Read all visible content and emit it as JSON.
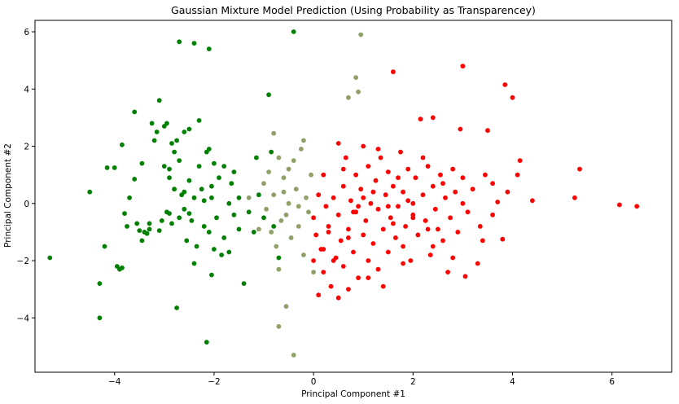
{
  "chart_data": {
    "type": "scatter",
    "title": "Gaussian Mixture Model Prediction (Using Probability as Transparencey)",
    "xlabel": "Principal Component #1",
    "ylabel": "Principal Component #2",
    "xlim": [
      -5.6,
      7.2
    ],
    "ylim": [
      -5.9,
      6.4
    ],
    "xticks": [
      -4,
      -2,
      0,
      2,
      4,
      6
    ],
    "yticks": [
      -4,
      -2,
      0,
      2,
      4,
      6
    ],
    "grid": false,
    "colors": {
      "cluster_a": "#ff0000",
      "cluster_b": "#008000",
      "frame": "#000000"
    },
    "series": [
      {
        "color": "#008000",
        "points": [
          [
            -5.3,
            -1.9
          ],
          [
            -4.5,
            0.4
          ],
          [
            -4.3,
            -4.0
          ],
          [
            -4.3,
            -2.8
          ],
          [
            -4.2,
            -1.5
          ],
          [
            -4.15,
            1.25
          ],
          [
            -4.0,
            1.25
          ],
          [
            -3.95,
            -2.2
          ],
          [
            -3.9,
            -2.3
          ],
          [
            -3.85,
            -2.25
          ],
          [
            -3.85,
            2.05
          ],
          [
            -3.8,
            -0.35
          ],
          [
            -3.75,
            -0.8
          ],
          [
            -3.6,
            3.2
          ],
          [
            -3.6,
            0.85
          ],
          [
            -3.55,
            -0.7
          ],
          [
            -3.5,
            -0.95
          ],
          [
            -3.45,
            1.4
          ],
          [
            -3.4,
            -1.0
          ],
          [
            -3.35,
            -1.05
          ],
          [
            -3.3,
            -0.7
          ],
          [
            -3.25,
            2.8
          ],
          [
            -3.2,
            2.2
          ],
          [
            -3.15,
            2.5
          ],
          [
            -3.1,
            -0.95
          ],
          [
            -3.1,
            3.6
          ],
          [
            -3.05,
            -0.6
          ],
          [
            -3.0,
            1.3
          ],
          [
            -3.0,
            2.7
          ],
          [
            -2.95,
            -0.3
          ],
          [
            -2.95,
            2.8
          ],
          [
            -2.9,
            0.9
          ],
          [
            -2.9,
            -0.35
          ],
          [
            -2.85,
            2.1
          ],
          [
            -2.8,
            0.5
          ],
          [
            -2.8,
            1.8
          ],
          [
            -2.75,
            2.2
          ],
          [
            -2.7,
            -0.5
          ],
          [
            -2.7,
            1.5
          ],
          [
            -2.7,
            5.65
          ],
          [
            -2.65,
            0.3
          ],
          [
            -2.6,
            0.4
          ],
          [
            -2.6,
            2.5
          ],
          [
            -2.55,
            -1.3
          ],
          [
            -2.5,
            2.6
          ],
          [
            -2.5,
            0.8
          ],
          [
            -2.45,
            -0.6
          ],
          [
            -2.4,
            0.2
          ],
          [
            -2.4,
            -2.1
          ],
          [
            -2.3,
            2.9
          ],
          [
            -2.3,
            1.3
          ],
          [
            -2.25,
            0.5
          ],
          [
            -2.2,
            -0.8
          ],
          [
            -2.2,
            0.1
          ],
          [
            -2.15,
            1.8
          ],
          [
            -2.1,
            -1.0
          ],
          [
            -2.1,
            5.4
          ],
          [
            -2.1,
            1.9
          ],
          [
            -2.05,
            0.2
          ],
          [
            -2.05,
            0.6
          ],
          [
            -2.0,
            -1.6
          ],
          [
            -2.0,
            1.4
          ],
          [
            -1.95,
            -0.5
          ],
          [
            -1.9,
            0.9
          ],
          [
            -1.85,
            -1.8
          ],
          [
            -1.8,
            1.3
          ],
          [
            -1.8,
            -1.2
          ],
          [
            -1.7,
            0.0
          ],
          [
            -1.7,
            -1.7
          ],
          [
            -1.6,
            -0.4
          ],
          [
            -1.6,
            1.1
          ],
          [
            -1.5,
            0.2
          ],
          [
            -1.5,
            -0.9
          ],
          [
            -1.4,
            -2.8
          ],
          [
            -1.3,
            -0.3
          ],
          [
            -1.2,
            -1.0
          ],
          [
            -1.15,
            1.6
          ],
          [
            -1.1,
            0.3
          ],
          [
            -1.0,
            -0.5
          ],
          [
            -0.9,
            3.8
          ],
          [
            -0.85,
            1.8
          ],
          [
            -0.8,
            -0.8
          ],
          [
            -0.7,
            -1.9
          ],
          [
            -0.4,
            6.0
          ],
          [
            -2.75,
            -3.65
          ],
          [
            -2.15,
            -4.85
          ],
          [
            -2.4,
            5.6
          ],
          [
            -3.3,
            -0.9
          ],
          [
            -3.7,
            0.2
          ],
          [
            -2.9,
            1.2
          ],
          [
            -2.6,
            -0.2
          ],
          [
            -3.45,
            -1.3
          ],
          [
            -2.05,
            -2.5
          ],
          [
            -2.35,
            -1.5
          ],
          [
            -2.85,
            -0.7
          ],
          [
            -1.65,
            0.7
          ],
          [
            -2.5,
            -0.35
          ]
        ]
      },
      {
        "color": "#ff0000",
        "points": [
          [
            0.0,
            -0.5
          ],
          [
            0.05,
            -1.1
          ],
          [
            0.1,
            0.3
          ],
          [
            0.1,
            -3.2
          ],
          [
            0.15,
            -1.6
          ],
          [
            0.2,
            1.0
          ],
          [
            0.2,
            -2.4
          ],
          [
            0.25,
            -0.1
          ],
          [
            0.3,
            -0.8
          ],
          [
            0.35,
            -2.9
          ],
          [
            0.4,
            0.2
          ],
          [
            0.45,
            -1.9
          ],
          [
            0.5,
            2.1
          ],
          [
            0.5,
            -0.4
          ],
          [
            0.55,
            -1.3
          ],
          [
            0.6,
            0.6
          ],
          [
            0.6,
            -2.2
          ],
          [
            0.65,
            1.6
          ],
          [
            0.7,
            -0.9
          ],
          [
            0.7,
            -3.0
          ],
          [
            0.75,
            0.1
          ],
          [
            0.8,
            -1.7
          ],
          [
            0.85,
            1.0
          ],
          [
            0.85,
            -0.3
          ],
          [
            0.9,
            -2.6
          ],
          [
            0.95,
            0.5
          ],
          [
            1.0,
            -1.1
          ],
          [
            1.0,
            2.0
          ],
          [
            1.05,
            -0.6
          ],
          [
            1.1,
            1.3
          ],
          [
            1.1,
            -2.0
          ],
          [
            1.15,
            0.0
          ],
          [
            1.2,
            -1.4
          ],
          [
            1.25,
            0.8
          ],
          [
            1.3,
            -0.2
          ],
          [
            1.3,
            -2.3
          ],
          [
            1.35,
            1.6
          ],
          [
            1.4,
            -0.9
          ],
          [
            1.45,
            0.3
          ],
          [
            1.5,
            -1.7
          ],
          [
            1.5,
            1.1
          ],
          [
            1.55,
            -0.5
          ],
          [
            1.6,
            4.6
          ],
          [
            1.6,
            0.6
          ],
          [
            1.65,
            -1.2
          ],
          [
            1.7,
            -0.1
          ],
          [
            1.75,
            1.8
          ],
          [
            1.8,
            -1.5
          ],
          [
            1.8,
            0.4
          ],
          [
            1.85,
            -0.8
          ],
          [
            1.9,
            1.2
          ],
          [
            1.95,
            -2.0
          ],
          [
            2.0,
            0.0
          ],
          [
            2.0,
            -0.4
          ],
          [
            2.05,
            0.9
          ],
          [
            2.1,
            -1.1
          ],
          [
            2.15,
            2.95
          ],
          [
            2.2,
            0.3
          ],
          [
            2.25,
            -0.6
          ],
          [
            2.3,
            1.3
          ],
          [
            2.35,
            -1.8
          ],
          [
            2.4,
            3.0
          ],
          [
            2.4,
            0.6
          ],
          [
            2.45,
            -0.2
          ],
          [
            2.5,
            -0.9
          ],
          [
            2.55,
            1.0
          ],
          [
            2.6,
            -1.3
          ],
          [
            2.65,
            0.2
          ],
          [
            2.7,
            -2.4
          ],
          [
            2.75,
            -0.5
          ],
          [
            2.8,
            1.2
          ],
          [
            2.85,
            0.4
          ],
          [
            2.9,
            -1.0
          ],
          [
            2.95,
            2.6
          ],
          [
            3.0,
            0.9
          ],
          [
            3.0,
            4.8
          ],
          [
            3.05,
            -2.55
          ],
          [
            3.1,
            -0.3
          ],
          [
            3.2,
            0.5
          ],
          [
            3.3,
            -2.1
          ],
          [
            3.35,
            -0.8
          ],
          [
            3.45,
            1.0
          ],
          [
            3.5,
            2.55
          ],
          [
            3.6,
            0.7
          ],
          [
            3.7,
            0.05
          ],
          [
            3.8,
            -1.25
          ],
          [
            3.85,
            4.15
          ],
          [
            3.9,
            0.4
          ],
          [
            4.0,
            3.7
          ],
          [
            4.1,
            1.0
          ],
          [
            4.15,
            1.5
          ],
          [
            4.4,
            0.1
          ],
          [
            5.25,
            0.2
          ],
          [
            5.35,
            1.2
          ],
          [
            6.15,
            -0.05
          ],
          [
            6.5,
            -0.1
          ],
          [
            0.4,
            -2.0
          ],
          [
            0.9,
            -0.1
          ],
          [
            1.4,
            -2.9
          ],
          [
            0.3,
            -1.0
          ],
          [
            2.0,
            -0.5
          ],
          [
            1.7,
            0.9
          ],
          [
            0.6,
            1.2
          ],
          [
            2.3,
            -0.9
          ],
          [
            1.2,
            0.4
          ],
          [
            0.8,
            -0.3
          ],
          [
            1.9,
            0.1
          ],
          [
            2.6,
            0.7
          ],
          [
            0.5,
            -3.3
          ],
          [
            1.1,
            -2.6
          ],
          [
            3.4,
            -1.3
          ],
          [
            2.8,
            -1.9
          ],
          [
            1.5,
            -0.1
          ],
          [
            2.2,
            1.6
          ],
          [
            0.2,
            -1.6
          ],
          [
            1.0,
            0.2
          ],
          [
            0.7,
            -1.2
          ],
          [
            3.0,
            0.0
          ],
          [
            2.4,
            -1.5
          ],
          [
            1.8,
            -2.1
          ],
          [
            1.3,
            1.9
          ],
          [
            3.6,
            -0.4
          ],
          [
            0.0,
            -2.0
          ],
          [
            1.6,
            -0.7
          ]
        ]
      },
      {
        "color": "#8fa068",
        "points": [
          [
            -1.0,
            0.7
          ],
          [
            -0.95,
            -0.2
          ],
          [
            -0.9,
            1.1
          ],
          [
            -0.85,
            -1.0
          ],
          [
            -0.8,
            0.3
          ],
          [
            -0.75,
            -1.5
          ],
          [
            -0.7,
            1.6
          ],
          [
            -0.7,
            -2.3
          ],
          [
            -0.65,
            -0.6
          ],
          [
            -0.6,
            0.9
          ],
          [
            -0.55,
            -3.6
          ],
          [
            -0.5,
            0.0
          ],
          [
            -0.5,
            1.2
          ],
          [
            -0.45,
            -1.2
          ],
          [
            -0.4,
            -5.3
          ],
          [
            -0.35,
            0.5
          ],
          [
            -0.3,
            -0.8
          ],
          [
            -0.25,
            1.9
          ],
          [
            -0.2,
            -1.8
          ],
          [
            -0.15,
            0.2
          ],
          [
            -0.1,
            -0.3
          ],
          [
            -0.05,
            1.0
          ],
          [
            0.0,
            -2.4
          ],
          [
            -0.3,
            -0.1
          ],
          [
            -0.6,
            0.4
          ],
          [
            0.7,
            3.7
          ],
          [
            0.85,
            4.4
          ],
          [
            0.9,
            3.9
          ],
          [
            0.95,
            5.9
          ],
          [
            -0.7,
            -4.3
          ],
          [
            -0.2,
            2.2
          ],
          [
            -0.55,
            -0.4
          ],
          [
            -1.1,
            -0.9
          ],
          [
            -0.8,
            2.45
          ],
          [
            -1.3,
            0.2
          ],
          [
            -0.4,
            1.5
          ]
        ]
      }
    ]
  }
}
